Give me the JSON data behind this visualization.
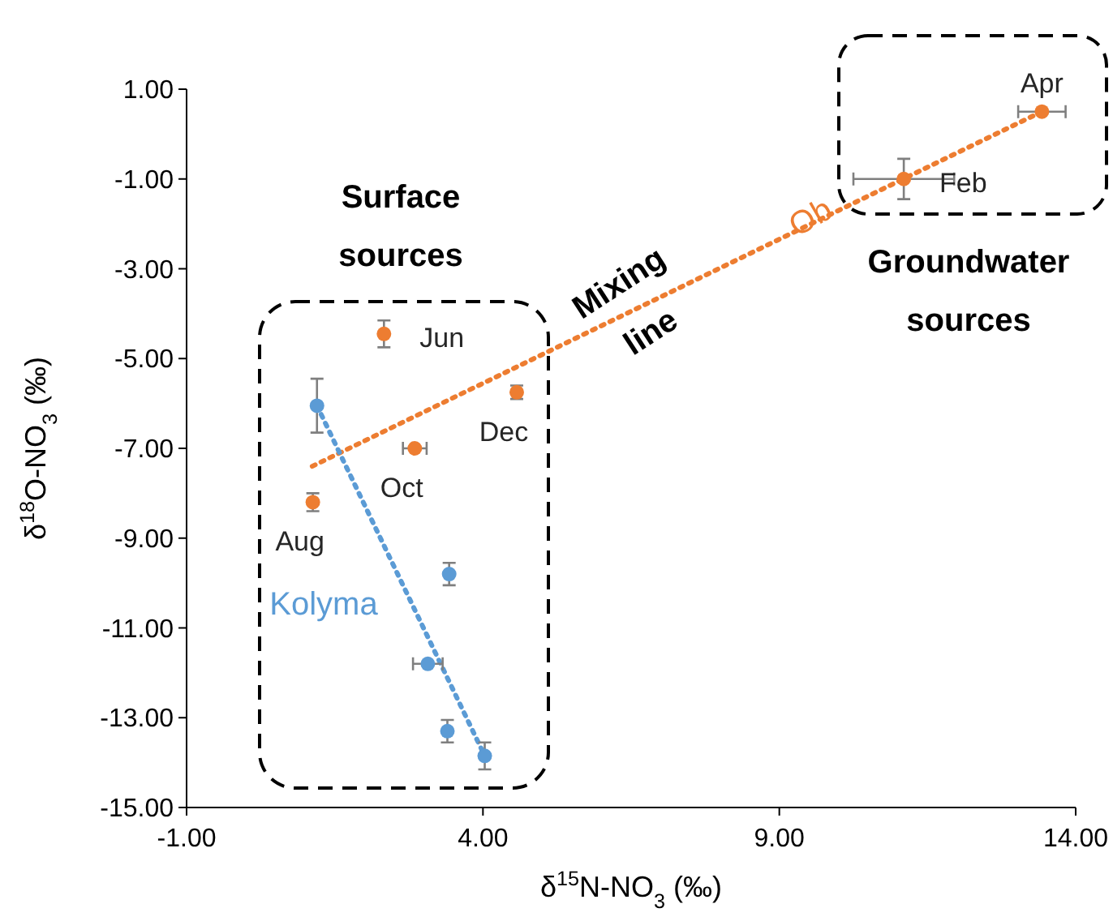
{
  "chart_data": {
    "type": "scatter",
    "xlabel": "δ$^{15}$N-NO$_{3}$ (‰)",
    "ylabel": "δ$^{18}$O-NO$_{3}$ (‰)",
    "xlim": [
      -1,
      14
    ],
    "xticks": [
      {
        "value": -1,
        "label": "-1.00"
      },
      {
        "value": 4,
        "label": "4.00"
      },
      {
        "value": 9,
        "label": "9.00"
      },
      {
        "value": 14,
        "label": "14.00"
      }
    ],
    "ylim": [
      -15,
      1
    ],
    "yticks": [
      {
        "value": -15,
        "label": "-15.00"
      },
      {
        "value": -13,
        "label": "-13.00"
      },
      {
        "value": -11,
        "label": "-11.00"
      },
      {
        "value": -9,
        "label": "-9.00"
      },
      {
        "value": -7,
        "label": "-7.00"
      },
      {
        "value": -5,
        "label": "-5.00"
      },
      {
        "value": -3,
        "label": "-3.00"
      },
      {
        "value": -1,
        "label": "-1.00"
      },
      {
        "value": 1,
        "label": "1.00"
      }
    ],
    "grid": false,
    "legend": false,
    "marker": "circle",
    "series": [
      {
        "name": "Ob",
        "color": "#ed7d31",
        "x": [
          2.33,
          4.57,
          2.85,
          1.13,
          11.1,
          13.43
        ],
        "values": [
          -4.45,
          -5.75,
          -7.0,
          -8.2,
          -1.0,
          0.5
        ],
        "errors": [
          0.3,
          0.15,
          null,
          0.2,
          0.45,
          null
        ],
        "xerrors": [
          null,
          null,
          0.2,
          null,
          0.85,
          0.4
        ]
      },
      {
        "name": "Kolyma",
        "color": "#5b9bd5",
        "x": [
          1.2,
          3.43,
          3.07,
          3.4,
          4.03
        ],
        "values": [
          -6.05,
          -9.8,
          -11.8,
          -13.3,
          -13.85
        ],
        "errors": [
          0.6,
          0.25,
          null,
          0.25,
          0.3
        ],
        "xerrors": [
          null,
          null,
          0.25,
          null,
          null
        ]
      },
      {
        "type": "line",
        "color": "#ed7d31",
        "line_style": "dotted",
        "marker": "none",
        "x": [
          1.12,
          13.43
        ],
        "values": [
          -7.4,
          0.5
        ]
      },
      {
        "type": "line",
        "color": "#5b9bd5",
        "line_style": "dotted",
        "marker": "none",
        "x": [
          1.2,
          4.03
        ],
        "values": [
          -6.05,
          -13.85
        ]
      }
    ],
    "annotations": [
      {
        "text": "Jun",
        "x": 2.33,
        "y": -4.45
      },
      {
        "text": "Dec",
        "x": 4.57,
        "y": -5.75
      },
      {
        "text": "Oct",
        "x": 2.85,
        "y": -7.0
      },
      {
        "text": "Aug",
        "x": 1.13,
        "y": -8.2
      },
      {
        "text": "Feb",
        "x": 11.1,
        "y": -1.0
      },
      {
        "text": "Apr",
        "x": 13.43,
        "y": 0.5
      },
      "Surface sources",
      "Groundwater sources",
      "Mixing line"
    ]
  }
}
